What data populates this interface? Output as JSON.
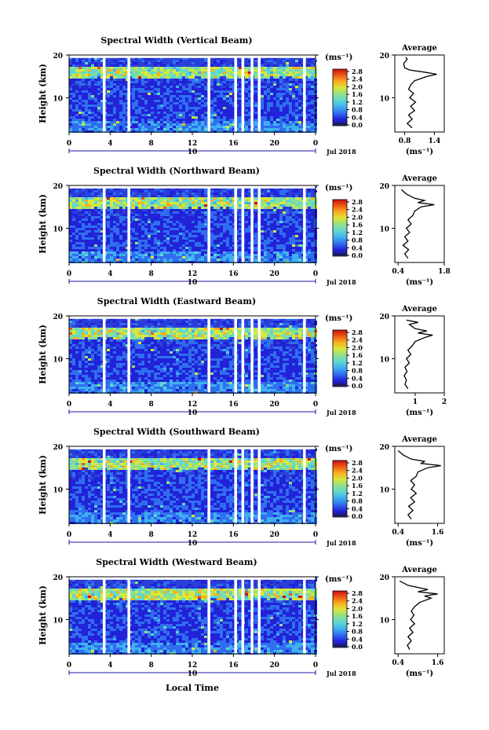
{
  "common": {
    "ylabel": "Height (km)",
    "unit_label": "(ms⁻¹)",
    "x_ticks": [
      "0",
      "4",
      "8",
      "12",
      "16",
      "20",
      "0"
    ],
    "date_label": "10",
    "month_label": "Jul 2018",
    "avg_title": "Average",
    "y_ticks": [
      "20",
      "10"
    ],
    "colorbar_ticks": [
      "2.8",
      "2.4",
      "2.0",
      "1.6",
      "1.2",
      "0.8",
      "0.4",
      "0.0"
    ],
    "xlabel": "Local Time",
    "colors": {
      "colormap": [
        "#1a1aa0",
        "#2222d8",
        "#2f6ef0",
        "#3fb0f0",
        "#5ed8d0",
        "#8fe08a",
        "#d8e83a",
        "#f8b020",
        "#f05a14",
        "#c81010"
      ],
      "gap": "#ffffff",
      "line": "#000000"
    }
  },
  "chart_data": [
    {
      "type": "heatmap",
      "title": "Spectral Width (Vertical Beam)",
      "x_range": [
        0,
        24
      ],
      "y_range": [
        2,
        20
      ],
      "z_range": [
        0.0,
        2.8
      ],
      "data_gaps_hours": [
        3.4,
        5.8,
        13.6,
        16.2,
        16.9,
        17.8,
        18.5,
        22.9
      ],
      "avg_profile": {
        "xlim": [
          0.6,
          1.6
        ],
        "x_ticks": [
          "0.8",
          "1.4"
        ],
        "x_tick_values": [
          0.8,
          1.4
        ],
        "heights": [
          3,
          4,
          5,
          6,
          7,
          8,
          9,
          10,
          11,
          12,
          13,
          14,
          15,
          15.5,
          16,
          16.5,
          17,
          18,
          19,
          19.5
        ],
        "values": [
          0.95,
          0.85,
          0.95,
          0.88,
          1.0,
          0.92,
          1.02,
          0.9,
          0.98,
          0.88,
          0.92,
          1.0,
          1.25,
          1.45,
          1.2,
          0.9,
          0.8,
          0.78,
          0.85,
          0.82
        ]
      }
    },
    {
      "type": "heatmap",
      "title": "Spectral Width (Northward Beam)",
      "x_range": [
        0,
        24
      ],
      "y_range": [
        2,
        20
      ],
      "z_range": [
        0.0,
        2.8
      ],
      "data_gaps_hours": [
        3.4,
        5.8,
        13.6,
        16.2,
        16.9,
        17.8,
        18.5,
        22.9
      ],
      "avg_profile": {
        "xlim": [
          0.3,
          1.8
        ],
        "x_ticks": [
          "0.4",
          "1.8"
        ],
        "x_tick_values": [
          0.4,
          1.8
        ],
        "heights": [
          3,
          4,
          5,
          6,
          7,
          8,
          9,
          10,
          11,
          12,
          13,
          14,
          15,
          15.5,
          16,
          16.5,
          17,
          18,
          19
        ],
        "values": [
          0.7,
          0.6,
          0.72,
          0.55,
          0.7,
          0.6,
          0.75,
          0.65,
          0.8,
          0.7,
          0.85,
          0.9,
          1.1,
          1.5,
          1.0,
          1.2,
          0.9,
          0.65,
          0.5
        ]
      }
    },
    {
      "type": "heatmap",
      "title": "Spectral Width (Eastward Beam)",
      "x_range": [
        0,
        24
      ],
      "y_range": [
        2,
        20
      ],
      "z_range": [
        0.0,
        2.8
      ],
      "data_gaps_hours": [
        3.4,
        5.8,
        13.6,
        16.2,
        16.9,
        17.8,
        18.5,
        22.9
      ],
      "avg_profile": {
        "xlim": [
          0.3,
          2.0
        ],
        "x_ticks": [
          "1",
          "2"
        ],
        "x_tick_values": [
          1,
          2
        ],
        "heights": [
          3,
          4,
          5,
          6,
          7,
          8,
          9,
          10,
          11,
          12,
          13,
          14,
          15,
          15.5,
          16,
          16.5,
          17,
          18,
          18.5,
          19
        ],
        "values": [
          0.75,
          0.65,
          0.7,
          0.62,
          0.72,
          0.65,
          0.8,
          0.7,
          0.85,
          0.75,
          0.9,
          1.0,
          1.35,
          1.6,
          1.1,
          1.4,
          1.0,
          0.8,
          1.1,
          0.7
        ]
      }
    },
    {
      "type": "heatmap",
      "title": "Spectral Width (Southward Beam)",
      "x_range": [
        0,
        24
      ],
      "y_range": [
        2,
        20
      ],
      "z_range": [
        0.0,
        2.8
      ],
      "data_gaps_hours": [
        3.4,
        5.8,
        13.6,
        16.2,
        16.9,
        17.8,
        18.5,
        22.9
      ],
      "avg_profile": {
        "xlim": [
          0.3,
          1.8
        ],
        "x_ticks": [
          "0.4",
          "1.6"
        ],
        "x_tick_values": [
          0.4,
          1.6
        ],
        "heights": [
          3,
          4,
          5,
          6,
          7,
          8,
          9,
          10,
          11,
          12,
          13,
          14,
          15,
          15.5,
          16,
          16.5,
          17,
          18,
          19
        ],
        "values": [
          0.8,
          0.7,
          0.85,
          0.72,
          0.9,
          0.78,
          0.95,
          0.8,
          0.9,
          0.78,
          0.95,
          1.0,
          1.3,
          1.7,
          1.1,
          1.2,
          0.8,
          0.55,
          0.4
        ]
      }
    },
    {
      "type": "heatmap",
      "title": "Spectral Width (Westward Beam)",
      "x_range": [
        0,
        24
      ],
      "y_range": [
        2,
        20
      ],
      "z_range": [
        0.0,
        2.8
      ],
      "data_gaps_hours": [
        3.4,
        5.8,
        13.6,
        16.2,
        16.9,
        17.8,
        18.5,
        22.9
      ],
      "avg_profile": {
        "xlim": [
          0.3,
          1.8
        ],
        "x_ticks": [
          "0.4",
          "1.6"
        ],
        "x_tick_values": [
          0.4,
          1.6
        ],
        "heights": [
          3,
          4,
          5,
          6,
          7,
          8,
          9,
          10,
          11,
          12,
          13,
          14,
          15,
          15.5,
          16,
          16.5,
          17,
          18,
          19
        ],
        "values": [
          0.75,
          0.68,
          0.8,
          0.7,
          0.85,
          0.75,
          0.9,
          0.78,
          0.88,
          0.8,
          0.9,
          1.05,
          1.4,
          1.2,
          1.6,
          1.0,
          1.3,
          0.7,
          0.45
        ]
      }
    }
  ]
}
